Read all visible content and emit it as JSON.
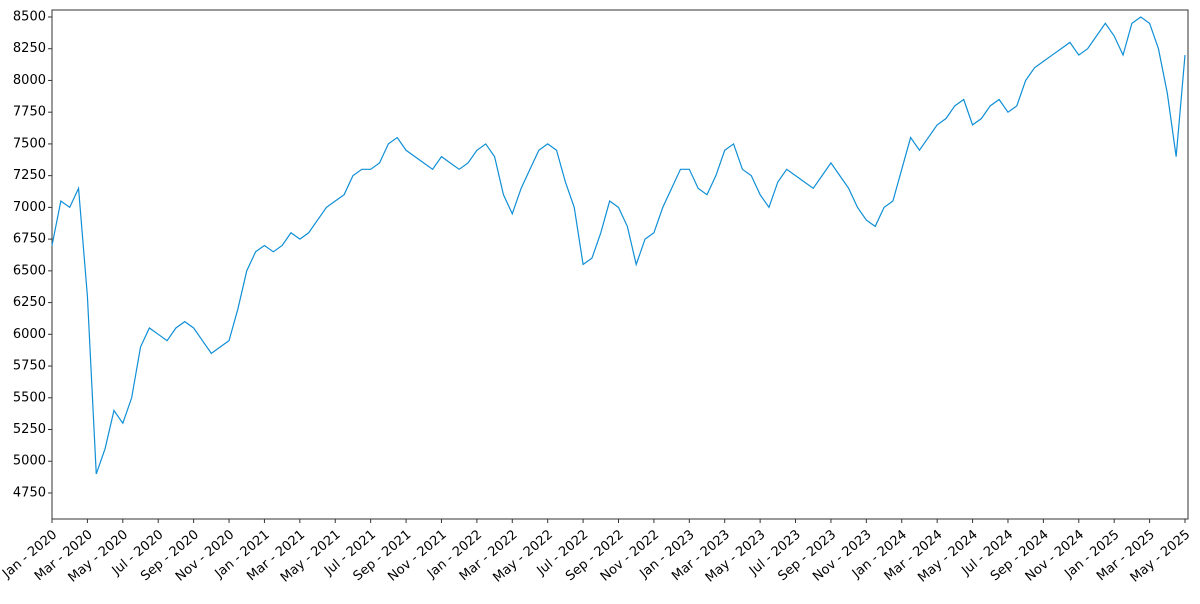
{
  "chart_data": {
    "type": "line",
    "color": "#0f8fd6",
    "ylim": [
      4545,
      8555
    ],
    "yticks": [
      4750,
      5000,
      5250,
      5500,
      5750,
      6000,
      6250,
      6500,
      6750,
      7000,
      7250,
      7500,
      7750,
      8000,
      8250,
      8500
    ],
    "categories": [
      "Jan - 2020",
      null,
      null,
      null,
      "Mar - 2020",
      null,
      null,
      null,
      "May - 2020",
      null,
      null,
      null,
      "Jul - 2020",
      null,
      null,
      null,
      "Sep - 2020",
      null,
      null,
      null,
      "Nov - 2020",
      null,
      null,
      null,
      "Jan - 2021",
      null,
      null,
      null,
      "Mar - 2021",
      null,
      null,
      null,
      "May - 2021",
      null,
      null,
      null,
      "Jul - 2021",
      null,
      null,
      null,
      "Sep - 2021",
      null,
      null,
      null,
      "Nov - 2021",
      null,
      null,
      null,
      "Jan - 2022",
      null,
      null,
      null,
      "Mar - 2022",
      null,
      null,
      null,
      "May - 2022",
      null,
      null,
      null,
      "Jul - 2022",
      null,
      null,
      null,
      "Sep - 2022",
      null,
      null,
      null,
      "Nov - 2022",
      null,
      null,
      null,
      "Jan - 2023",
      null,
      null,
      null,
      "Mar - 2023",
      null,
      null,
      null,
      "May - 2023",
      null,
      null,
      null,
      "Jul - 2023",
      null,
      null,
      null,
      "Sep - 2023",
      null,
      null,
      null,
      "Nov - 2023",
      null,
      null,
      null,
      "Jan - 2024",
      null,
      null,
      null,
      "Mar - 2024",
      null,
      null,
      null,
      "May - 2024",
      null,
      null,
      null,
      "Jul - 2024",
      null,
      null,
      null,
      "Sep - 2024",
      null,
      null,
      null,
      "Nov - 2024",
      null,
      null,
      null,
      "Jan - 2025",
      null,
      null,
      null,
      "Mar - 2025",
      null,
      null,
      null,
      "May - 2025"
    ],
    "values": [
      6700,
      7050,
      7000,
      7150,
      6300,
      4900,
      5100,
      5400,
      5300,
      5500,
      5900,
      6050,
      6000,
      5950,
      6050,
      6100,
      6050,
      5950,
      5850,
      5900,
      5950,
      6200,
      6500,
      6650,
      6700,
      6650,
      6700,
      6800,
      6750,
      6800,
      6900,
      7000,
      7050,
      7100,
      7250,
      7300,
      7300,
      7350,
      7500,
      7550,
      7450,
      7400,
      7350,
      7300,
      7400,
      7350,
      7300,
      7350,
      7450,
      7500,
      7400,
      7100,
      6950,
      7150,
      7300,
      7450,
      7500,
      7450,
      7200,
      7000,
      6550,
      6600,
      6800,
      7050,
      7000,
      6850,
      6550,
      6750,
      6800,
      7000,
      7150,
      7300,
      7300,
      7150,
      7100,
      7250,
      7450,
      7500,
      7300,
      7250,
      7100,
      7000,
      7200,
      7300,
      7250,
      7200,
      7150,
      7250,
      7350,
      7250,
      7150,
      7000,
      6900,
      6850,
      7000,
      7050,
      7300,
      7550,
      7450,
      7550,
      7650,
      7700,
      7800,
      7850,
      7650,
      7700,
      7800,
      7850,
      7750,
      7800,
      8000,
      8100,
      8150,
      8200,
      8250,
      8300,
      8200,
      8250,
      8350,
      8450,
      8350,
      8200,
      8450,
      8500,
      8450,
      8250,
      7900,
      7400,
      8200
    ]
  }
}
